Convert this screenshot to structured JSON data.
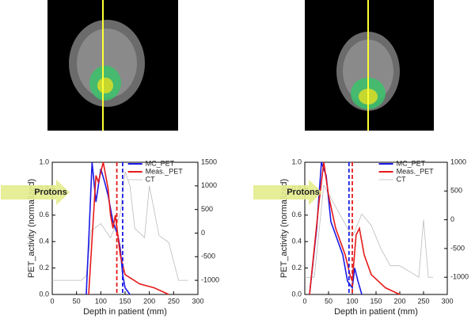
{
  "chart_data": [
    {
      "type": "line",
      "annotation": "Protons",
      "xlabel": "Depth in patient (mm)",
      "ylabel": "PET_activity (normalized)",
      "xlim": [
        0,
        300
      ],
      "xticks": [
        0,
        50,
        100,
        150,
        200,
        250,
        300
      ],
      "ylim": [
        0,
        1.0
      ],
      "yticks": [
        {
          "value": 0,
          "label": "0.0"
        },
        0.2,
        0.4,
        0.6,
        0.8,
        {
          "value": 1,
          "label": "1.0"
        }
      ],
      "y2lim": [
        -1300,
        1500
      ],
      "y2ticks": [
        -1000,
        -500,
        0,
        500,
        1000,
        1500
      ],
      "series": [
        {
          "name": "MC_PET",
          "color": "#1a1ae6",
          "x": [
            70,
            75,
            82,
            90,
            100,
            108,
            115,
            125,
            135,
            140,
            145,
            150,
            160
          ],
          "values": [
            0,
            0.4,
            1.0,
            0.7,
            0.95,
            0.85,
            0.75,
            0.55,
            0.45,
            0.35,
            0.15,
            0.05,
            0
          ]
        },
        {
          "name": "Meas._PET",
          "color": "#e61a1a",
          "x": [
            75,
            80,
            90,
            95,
            105,
            115,
            120,
            125,
            130,
            140,
            150,
            180,
            210,
            240
          ],
          "values": [
            0,
            0.3,
            0.9,
            0.85,
            1.0,
            0.8,
            0.6,
            0.5,
            0.6,
            0.3,
            0.15,
            0.08,
            0.05,
            0
          ]
        },
        {
          "name": "CT",
          "color": "#bbbbbb",
          "axis": "y2",
          "x": [
            0,
            60,
            70,
            80,
            100,
            120,
            140,
            150,
            160,
            170,
            180,
            190,
            200,
            220,
            240,
            260,
            280
          ],
          "values": [
            -1000,
            -1000,
            -900,
            50,
            200,
            -100,
            400,
            1300,
            1000,
            100,
            0,
            -100,
            1000,
            -50,
            -200,
            -1000,
            -1000
          ]
        }
      ],
      "vlines": [
        {
          "x": 133,
          "color": "#e61a1a"
        },
        {
          "x": 145,
          "color": "#1a1ae6"
        }
      ]
    },
    {
      "type": "line",
      "annotation": "Protons",
      "xlabel": "Depth in patient (mm)",
      "ylabel": "PET_activity (normalized)",
      "xlim": [
        0,
        300
      ],
      "xticks": [
        0,
        50,
        100,
        150,
        200,
        250,
        300
      ],
      "ylim": [
        0,
        1.0
      ],
      "yticks": [
        {
          "value": 0,
          "label": "0.0"
        },
        0.2,
        0.4,
        0.6,
        0.8,
        {
          "value": 1,
          "label": "1.0"
        }
      ],
      "y2lim": [
        -1300,
        1000
      ],
      "y2ticks": [
        -1000,
        -500,
        0,
        500,
        1000
      ],
      "series": [
        {
          "name": "MC_PET",
          "color": "#1a1ae6",
          "x": [
            10,
            25,
            35,
            45,
            55,
            65,
            75,
            80,
            90,
            100,
            105,
            112,
            120
          ],
          "values": [
            0,
            0.5,
            1.0,
            0.9,
            0.55,
            0.45,
            0.35,
            0.3,
            0.1,
            0.05,
            0.2,
            0.1,
            0
          ]
        },
        {
          "name": "Meas._PET",
          "color": "#e61a1a",
          "x": [
            10,
            30,
            40,
            50,
            65,
            75,
            85,
            95,
            100,
            108,
            115,
            125,
            140,
            170,
            200
          ],
          "values": [
            0,
            0.7,
            1.0,
            0.75,
            0.5,
            0.4,
            0.3,
            0.15,
            0.1,
            0.45,
            0.5,
            0.3,
            0.15,
            0.05,
            0
          ]
        },
        {
          "name": "CT",
          "color": "#bbbbbb",
          "axis": "y2",
          "x": [
            0,
            20,
            30,
            40,
            60,
            80,
            100,
            120,
            140,
            160,
            180,
            200,
            220,
            240,
            250,
            260,
            270
          ],
          "values": [
            -1000,
            -1000,
            -200,
            600,
            300,
            0,
            -300,
            100,
            -100,
            -500,
            -800,
            -800,
            -900,
            -1000,
            0,
            -1000,
            -1000
          ]
        }
      ],
      "vlines": [
        {
          "x": 93,
          "color": "#1a1ae6"
        },
        {
          "x": 100,
          "color": "#e61a1a"
        }
      ]
    }
  ]
}
